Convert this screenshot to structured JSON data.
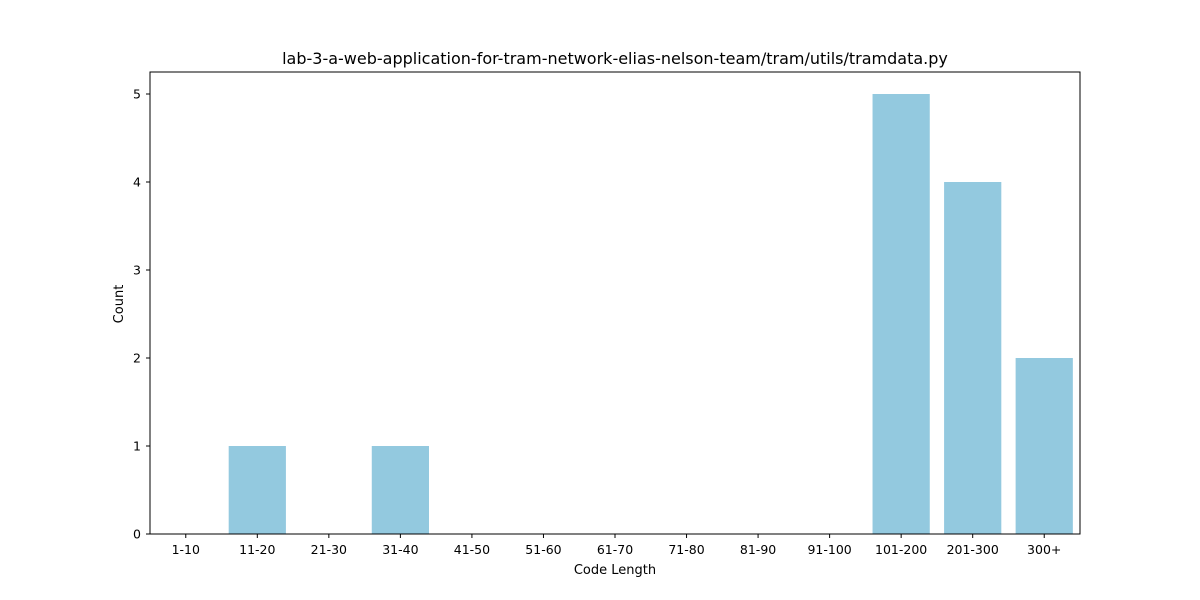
{
  "chart_data": {
    "type": "bar",
    "title": "lab-3-a-web-application-for-tram-network-elias-nelson-team/tram/utils/tramdata.py",
    "xlabel": "Code Length",
    "ylabel": "Count",
    "categories": [
      "1-10",
      "11-20",
      "21-30",
      "31-40",
      "41-50",
      "51-60",
      "61-70",
      "71-80",
      "81-90",
      "91-100",
      "101-200",
      "201-300",
      "300+"
    ],
    "values": [
      0,
      1,
      0,
      1,
      0,
      0,
      0,
      0,
      0,
      0,
      5,
      4,
      2
    ],
    "ylim": [
      0,
      5.25
    ],
    "yticks": [
      0,
      1,
      2,
      3,
      4,
      5
    ],
    "grid": false,
    "colors": {
      "bar": "#93c9df",
      "axis": "#000000",
      "background": "#ffffff"
    }
  }
}
